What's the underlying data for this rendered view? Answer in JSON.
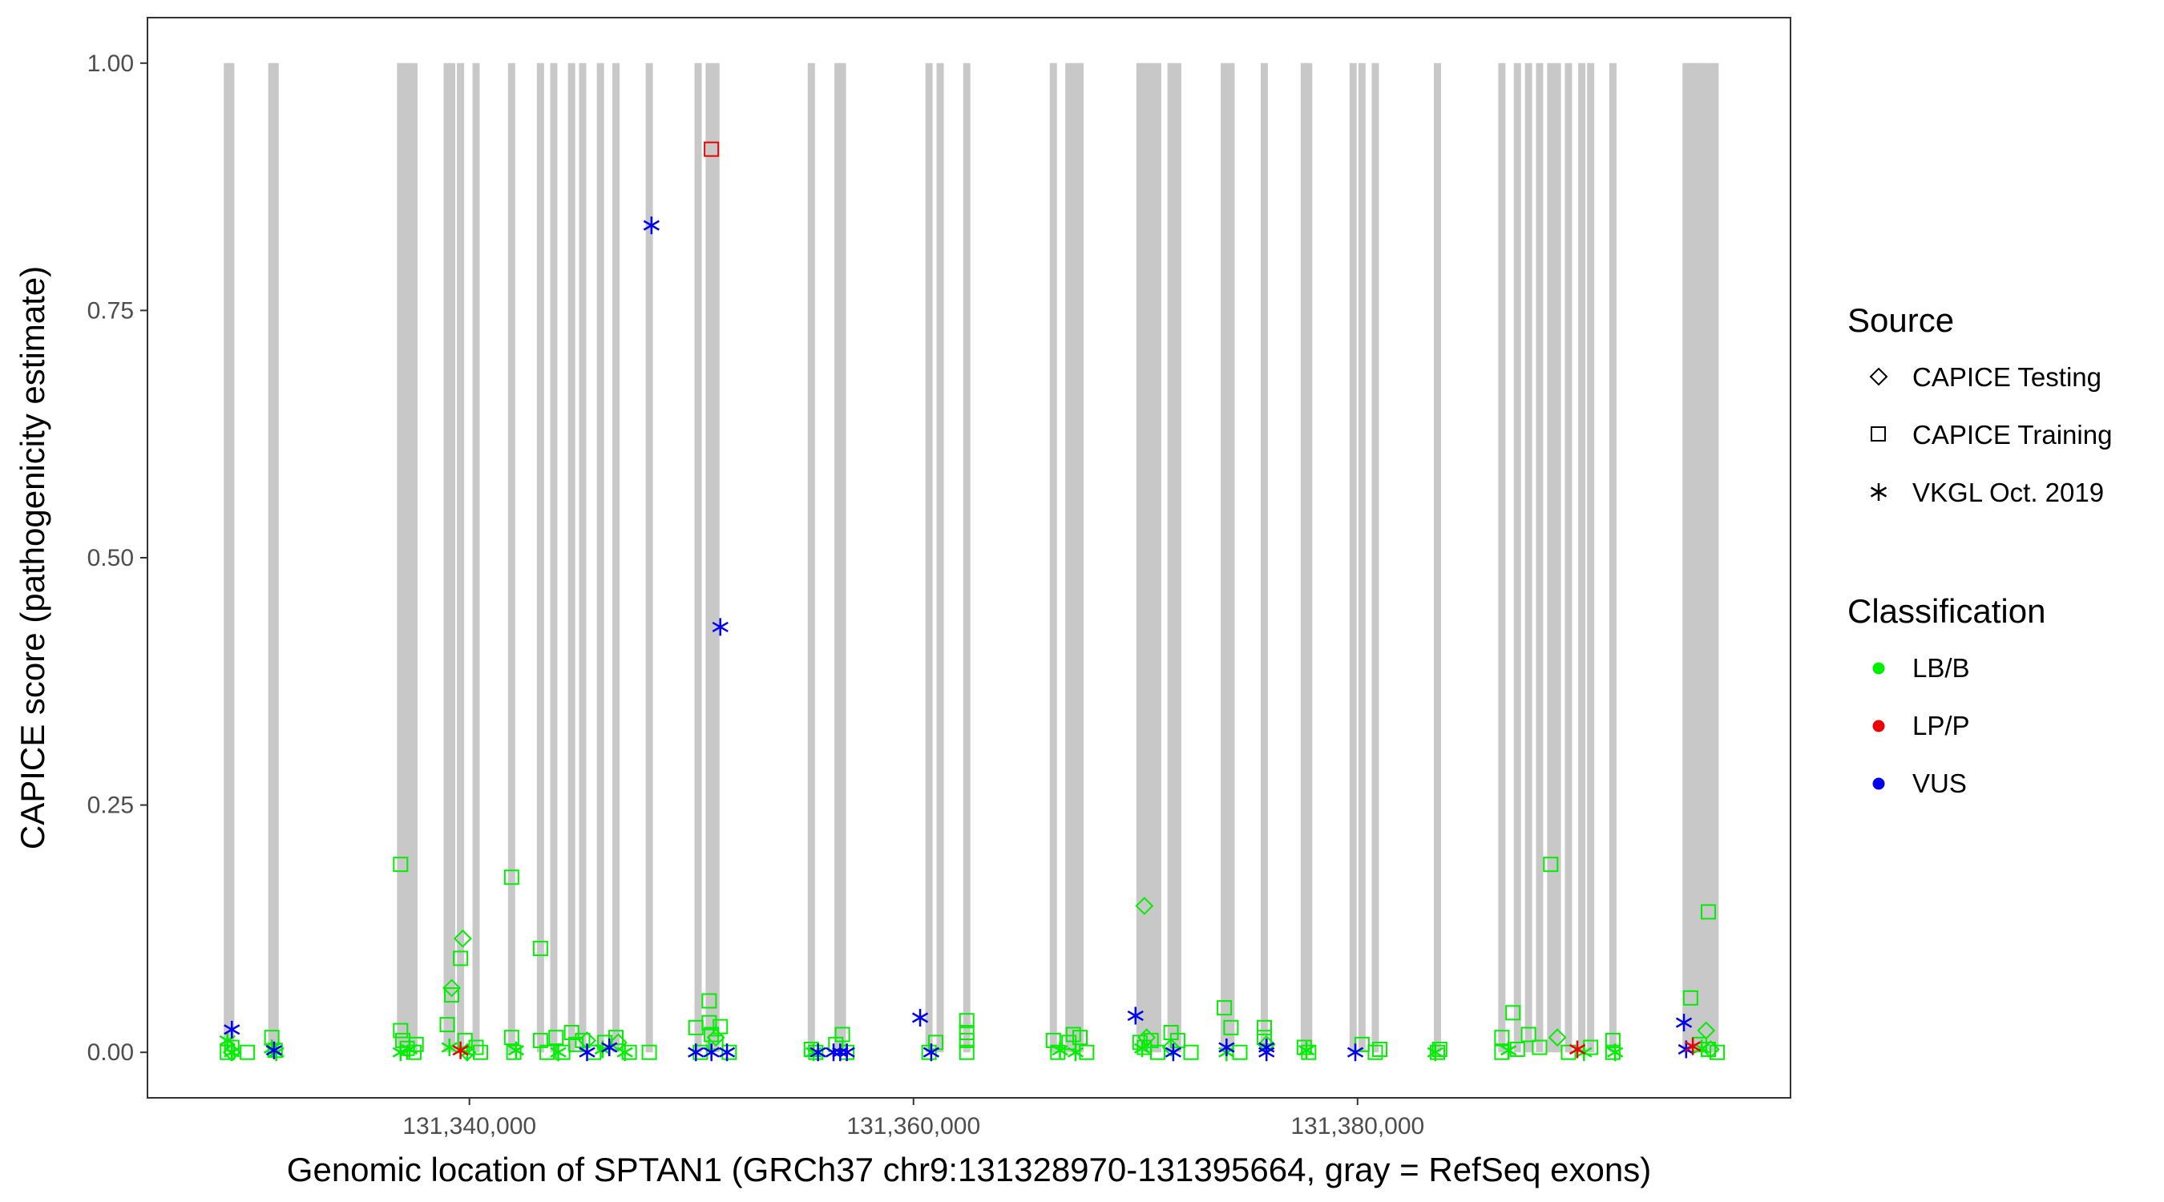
{
  "chart_data": {
    "type": "scatter",
    "title": "",
    "xlabel": "Genomic location of SPTAN1 (GRCh37 chr9:131328970-131395664, gray = RefSeq exons)",
    "ylabel": "CAPICE score (pathogenicity estimate)",
    "xlim": [
      131325500,
      131399500
    ],
    "ylim": [
      -0.046,
      1.046
    ],
    "x_ticks": [
      131340000,
      131360000,
      131380000
    ],
    "x_tick_labels": [
      "131,340,000",
      "131,360,000",
      "131,380,000"
    ],
    "y_ticks": [
      0,
      0.25,
      0.5,
      0.75,
      1.0
    ],
    "y_tick_labels": [
      "0.00",
      "0.25",
      "0.50",
      "0.75",
      "1.00"
    ],
    "grid": false,
    "exon_color": "#c8c8c8",
    "exons": [
      131329100,
      131329250,
      131331100,
      131331250,
      131336900,
      131337200,
      131337500,
      131339000,
      131339200,
      131339600,
      131340300,
      131341900,
      131343200,
      131343800,
      131344600,
      131345100,
      131345900,
      131346600,
      131348100,
      131350300,
      131350800,
      131351100,
      131355400,
      131356600,
      131356800,
      131360700,
      131361200,
      131362400,
      131366300,
      131367000,
      131367200,
      131367500,
      131370200,
      131370400,
      131370700,
      131371000,
      131371600,
      131371900,
      131374000,
      131374300,
      131375800,
      131377600,
      131377800,
      131379800,
      131380200,
      131380800,
      131383600,
      131386500,
      131387200,
      131387700,
      131388200,
      131388700,
      131389000,
      131389500,
      131390100,
      131390500,
      131391500,
      131394800,
      131395000,
      131395200,
      131395400,
      131395600,
      131395800,
      131396100
    ],
    "legend": {
      "source_title": "Source",
      "source_items": [
        {
          "label": "CAPICE Testing",
          "shape": "diamond"
        },
        {
          "label": "CAPICE Training",
          "shape": "square"
        },
        {
          "label": "VKGL Oct. 2019",
          "shape": "asterisk"
        }
      ],
      "classification_title": "Classification",
      "classification_items": [
        {
          "label": "LB/B",
          "color": "#00ee00"
        },
        {
          "label": "LP/P",
          "color": "#ee0000"
        },
        {
          "label": "VUS",
          "color": "#0000ee"
        }
      ]
    },
    "series": [
      {
        "source": "CAPICE Training",
        "classification": "LB/B",
        "points": [
          [
            131329100,
            0.0
          ],
          [
            131329300,
            0.005
          ],
          [
            131330000,
            0.0
          ],
          [
            131331100,
            0.015
          ],
          [
            131331250,
            0.002
          ],
          [
            131336900,
            0.19
          ],
          [
            131336900,
            0.022
          ],
          [
            131337000,
            0.012
          ],
          [
            131337200,
            0.004
          ],
          [
            131337600,
            0.008
          ],
          [
            131337500,
            0.0
          ],
          [
            131339000,
            0.028
          ],
          [
            131339200,
            0.058
          ],
          [
            131339600,
            0.095
          ],
          [
            131339800,
            0.012
          ],
          [
            131340300,
            0.005
          ],
          [
            131340500,
            0.0
          ],
          [
            131341900,
            0.177
          ],
          [
            131341900,
            0.015
          ],
          [
            131342000,
            0.0
          ],
          [
            131343200,
            0.105
          ],
          [
            131343200,
            0.012
          ],
          [
            131343500,
            0.0
          ],
          [
            131343900,
            0.015
          ],
          [
            131344200,
            0.0
          ],
          [
            131344600,
            0.02
          ],
          [
            131344800,
            0.008
          ],
          [
            131345100,
            0.012
          ],
          [
            131345600,
            0.0
          ],
          [
            131346100,
            0.01
          ],
          [
            131346600,
            0.015
          ],
          [
            131347200,
            0.0
          ],
          [
            131348100,
            0.0
          ],
          [
            131350200,
            0.025
          ],
          [
            131350400,
            0.0
          ],
          [
            131350800,
            0.052
          ],
          [
            131350800,
            0.03
          ],
          [
            131350900,
            0.018
          ],
          [
            131351100,
            0.01
          ],
          [
            131351300,
            0.026
          ],
          [
            131351700,
            0.0
          ],
          [
            131355400,
            0.003
          ],
          [
            131355600,
            0.0
          ],
          [
            131356500,
            0.008
          ],
          [
            131356800,
            0.018
          ],
          [
            131357000,
            0.0
          ],
          [
            131360700,
            0.0
          ],
          [
            131361000,
            0.01
          ],
          [
            131362400,
            0.032
          ],
          [
            131362400,
            0.02
          ],
          [
            131362400,
            0.012
          ],
          [
            131362400,
            0.0
          ],
          [
            131366300,
            0.012
          ],
          [
            131366500,
            0.0
          ],
          [
            131367000,
            0.01
          ],
          [
            131367200,
            0.018
          ],
          [
            131367500,
            0.015
          ],
          [
            131367800,
            0.0
          ],
          [
            131370200,
            0.01
          ],
          [
            131370400,
            0.005
          ],
          [
            131370700,
            0.012
          ],
          [
            131371000,
            0.0
          ],
          [
            131371600,
            0.02
          ],
          [
            131371900,
            0.012
          ],
          [
            131372500,
            0.0
          ],
          [
            131374000,
            0.045
          ],
          [
            131374300,
            0.025
          ],
          [
            131374700,
            0.0
          ],
          [
            131375800,
            0.025
          ],
          [
            131375800,
            0.015
          ],
          [
            131377600,
            0.005
          ],
          [
            131377800,
            0.0
          ],
          [
            131380200,
            0.008
          ],
          [
            131380800,
            0.0
          ],
          [
            131381000,
            0.003
          ],
          [
            131383600,
            0.0
          ],
          [
            131383700,
            0.003
          ],
          [
            131386500,
            0.015
          ],
          [
            131386500,
            0.0
          ],
          [
            131387000,
            0.04
          ],
          [
            131387200,
            0.003
          ],
          [
            131387700,
            0.018
          ],
          [
            131388200,
            0.005
          ],
          [
            131388700,
            0.19
          ],
          [
            131389500,
            0.0
          ],
          [
            131390500,
            0.005
          ],
          [
            131391500,
            0.012
          ],
          [
            131391500,
            0.0
          ],
          [
            131395000,
            0.055
          ],
          [
            131395800,
            0.142
          ],
          [
            131395400,
            0.008
          ],
          [
            131395800,
            0.003
          ],
          [
            131396200,
            0.0
          ]
        ]
      },
      {
        "source": "CAPICE Training",
        "classification": "LP/P",
        "points": [
          [
            131350900,
            0.913
          ]
        ]
      },
      {
        "source": "CAPICE Testing",
        "classification": "LB/B",
        "points": [
          [
            131329300,
            0.0
          ],
          [
            131339200,
            0.065
          ],
          [
            131339700,
            0.115
          ],
          [
            131339900,
            0.0
          ],
          [
            131345300,
            0.012
          ],
          [
            131346700,
            0.01
          ],
          [
            131351100,
            0.015
          ],
          [
            131370400,
            0.148
          ],
          [
            131370500,
            0.015
          ],
          [
            131371600,
            0.005
          ],
          [
            131375900,
            0.008
          ],
          [
            131389000,
            0.015
          ],
          [
            131395700,
            0.022
          ],
          [
            131395900,
            0.003
          ]
        ]
      },
      {
        "source": "VKGL Oct. 2019",
        "classification": "LB/B",
        "points": [
          [
            131329100,
            0.012
          ],
          [
            131329300,
            0.0
          ],
          [
            131331100,
            0.004
          ],
          [
            131331300,
            0.0
          ],
          [
            131336900,
            0.0
          ],
          [
            131337300,
            0.003
          ],
          [
            131339100,
            0.005
          ],
          [
            131339900,
            0.0
          ],
          [
            131342100,
            0.002
          ],
          [
            131344000,
            0.0
          ],
          [
            131346000,
            0.003
          ],
          [
            131347000,
            0.0
          ],
          [
            131355500,
            0.0
          ],
          [
            131366600,
            0.002
          ],
          [
            131367300,
            0.0
          ],
          [
            131370300,
            0.004
          ],
          [
            131374100,
            0.0
          ],
          [
            131377700,
            0.002
          ],
          [
            131383500,
            0.0
          ],
          [
            131386800,
            0.002
          ],
          [
            131390200,
            0.0
          ],
          [
            131391600,
            0.0
          ],
          [
            131395500,
            0.004
          ]
        ]
      },
      {
        "source": "VKGL Oct. 2019",
        "classification": "VUS",
        "points": [
          [
            131329300,
            0.023
          ],
          [
            131331200,
            0.002
          ],
          [
            131345300,
            0.0
          ],
          [
            131346300,
            0.005
          ],
          [
            131348200,
            0.836
          ],
          [
            131350200,
            0.0
          ],
          [
            131350900,
            0.0
          ],
          [
            131351300,
            0.43
          ],
          [
            131351600,
            0.0
          ],
          [
            131355700,
            0.0
          ],
          [
            131356400,
            0.0
          ],
          [
            131356700,
            0.0
          ],
          [
            131357000,
            0.0
          ],
          [
            131360300,
            0.035
          ],
          [
            131360800,
            0.0
          ],
          [
            131370000,
            0.037
          ],
          [
            131371700,
            0.0
          ],
          [
            131374100,
            0.005
          ],
          [
            131375900,
            0.005
          ],
          [
            131375900,
            0.0
          ],
          [
            131379900,
            0.0
          ],
          [
            131394700,
            0.03
          ],
          [
            131394800,
            0.003
          ]
        ]
      },
      {
        "source": "VKGL Oct. 2019",
        "classification": "LP/P",
        "points": [
          [
            131339600,
            0.002
          ],
          [
            131389900,
            0.003
          ],
          [
            131395100,
            0.006
          ]
        ]
      }
    ]
  }
}
